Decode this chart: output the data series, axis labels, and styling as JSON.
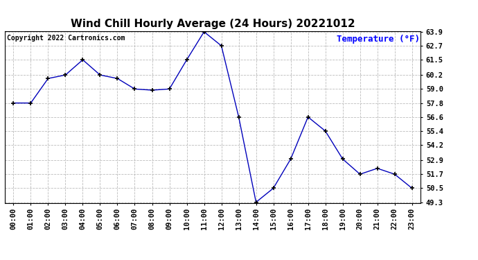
{
  "title": "Wind Chill Hourly Average (24 Hours) 20221012",
  "copyright_text": "Copyright 2022 Cartronics.com",
  "ylabel": "Temperature (°F)",
  "hours": [
    "00:00",
    "01:00",
    "02:00",
    "03:00",
    "04:00",
    "05:00",
    "06:00",
    "07:00",
    "08:00",
    "09:00",
    "10:00",
    "11:00",
    "12:00",
    "13:00",
    "14:00",
    "15:00",
    "16:00",
    "17:00",
    "18:00",
    "19:00",
    "20:00",
    "21:00",
    "22:00",
    "23:00"
  ],
  "values": [
    57.8,
    57.8,
    59.9,
    60.2,
    61.5,
    60.2,
    59.9,
    59.0,
    58.9,
    59.0,
    61.5,
    63.9,
    62.7,
    56.6,
    49.3,
    50.5,
    53.0,
    56.6,
    55.4,
    53.0,
    51.7,
    52.2,
    51.7,
    50.5
  ],
  "ylim_min": 49.3,
  "ylim_max": 63.9,
  "yticks": [
    49.3,
    50.5,
    51.7,
    52.9,
    54.2,
    55.4,
    56.6,
    57.8,
    59.0,
    60.2,
    61.5,
    62.7,
    63.9
  ],
  "line_color": "#0000bb",
  "marker_color": "#000000",
  "background_color": "#ffffff",
  "grid_color": "#bbbbbb",
  "title_color": "#000000",
  "copyright_color": "#000000",
  "ylabel_color": "#0000ff",
  "title_fontsize": 11,
  "copyright_fontsize": 7,
  "ylabel_fontsize": 9,
  "tick_fontsize": 7.5
}
